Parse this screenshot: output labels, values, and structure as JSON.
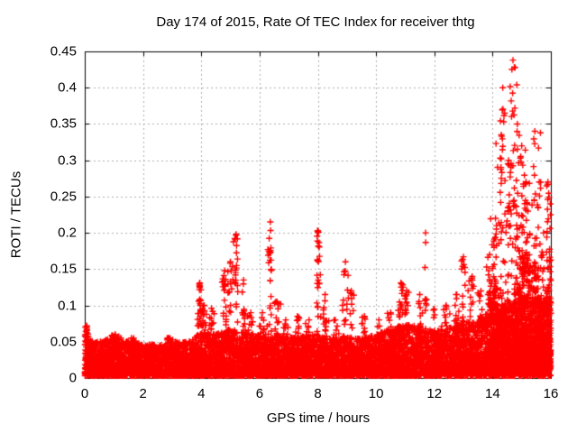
{
  "chart_data": {
    "type": "scatter",
    "title": "Day 174 of 2015, Rate Of TEC Index for receiver thtg",
    "xlabel": "GPS time / hours",
    "ylabel": "ROTI / TECUs",
    "xlim": [
      0,
      16
    ],
    "ylim": [
      0,
      0.45
    ],
    "xticks": [
      {
        "v": 0,
        "label": "0"
      },
      {
        "v": 2,
        "label": "2"
      },
      {
        "v": 4,
        "label": "4"
      },
      {
        "v": 6,
        "label": "6"
      },
      {
        "v": 8,
        "label": "8"
      },
      {
        "v": 10,
        "label": "10"
      },
      {
        "v": 12,
        "label": "12"
      },
      {
        "v": 14,
        "label": "14"
      },
      {
        "v": 16,
        "label": "16"
      }
    ],
    "yticks": [
      {
        "v": 0,
        "label": "0"
      },
      {
        "v": 0.05,
        "label": "0.05"
      },
      {
        "v": 0.1,
        "label": "0.1"
      },
      {
        "v": 0.15,
        "label": "0.15"
      },
      {
        "v": 0.2,
        "label": "0.2"
      },
      {
        "v": 0.25,
        "label": "0.25"
      },
      {
        "v": 0.3,
        "label": "0.3"
      },
      {
        "v": 0.35,
        "label": "0.35"
      },
      {
        "v": 0.4,
        "label": "0.4"
      },
      {
        "v": 0.45,
        "label": "0.45"
      }
    ],
    "grid": true,
    "legend": "none",
    "marker": "plus",
    "marker_size": 7,
    "marker_color": "#ff0000",
    "grid_color": "#b0b0b0",
    "axis_color": "#000000",
    "background": "#ffffff",
    "seed": 174,
    "baseline_band": {
      "count": 8200,
      "floor": 0.003,
      "shape_exponent": 1.7,
      "envelope": [
        [
          0,
          0.058
        ],
        [
          0.5,
          0.05
        ],
        [
          1,
          0.058
        ],
        [
          1.5,
          0.052
        ],
        [
          2,
          0.046
        ],
        [
          2.5,
          0.046
        ],
        [
          3,
          0.05
        ],
        [
          3.5,
          0.05
        ],
        [
          4,
          0.065
        ],
        [
          4.5,
          0.06
        ],
        [
          5,
          0.068
        ],
        [
          5.5,
          0.062
        ],
        [
          6,
          0.06
        ],
        [
          6.5,
          0.062
        ],
        [
          7,
          0.055
        ],
        [
          7.5,
          0.058
        ],
        [
          8,
          0.062
        ],
        [
          8.5,
          0.055
        ],
        [
          9,
          0.058
        ],
        [
          9.5,
          0.055
        ],
        [
          10,
          0.06
        ],
        [
          10.5,
          0.068
        ],
        [
          11,
          0.075
        ],
        [
          11.5,
          0.07
        ],
        [
          12,
          0.065
        ],
        [
          12.5,
          0.07
        ],
        [
          13,
          0.075
        ],
        [
          13.5,
          0.08
        ],
        [
          14,
          0.095
        ],
        [
          14.5,
          0.105
        ],
        [
          15,
          0.115
        ],
        [
          15.5,
          0.105
        ],
        [
          16,
          0.11
        ]
      ]
    },
    "storm_band": {
      "t0": 13.9,
      "t1": 16,
      "count": 950,
      "floor": 0.01,
      "shape_exponent": 1.5,
      "ymax_envelope": [
        [
          13.9,
          0.13
        ],
        [
          14.35,
          0.12
        ],
        [
          14.6,
          0.08
        ],
        [
          14.9,
          0.17
        ],
        [
          15.35,
          0.17
        ],
        [
          15.55,
          0.15
        ],
        [
          15.7,
          0.09
        ],
        [
          15.9,
          0.12
        ],
        [
          16,
          0.15
        ]
      ]
    },
    "spike_fields": [
      "t_hours",
      "sigma_hours",
      "peak_roti",
      "count"
    ],
    "spikes": [
      [
        0.07,
        0.04,
        0.072,
        20
      ],
      [
        1.05,
        0.08,
        0.06,
        12
      ],
      [
        1.6,
        0.06,
        0.055,
        8
      ],
      [
        2.9,
        0.08,
        0.055,
        8
      ],
      [
        3.95,
        0.04,
        0.131,
        30
      ],
      [
        4.1,
        0.05,
        0.1,
        14
      ],
      [
        4.35,
        0.04,
        0.096,
        12
      ],
      [
        4.8,
        0.05,
        0.148,
        22
      ],
      [
        5.0,
        0.05,
        0.16,
        18
      ],
      [
        5.2,
        0.04,
        0.198,
        22
      ],
      [
        5.45,
        0.06,
        0.135,
        15
      ],
      [
        5.7,
        0.05,
        0.09,
        10
      ],
      [
        6.1,
        0.05,
        0.09,
        10
      ],
      [
        6.37,
        0.04,
        0.215,
        26
      ],
      [
        6.6,
        0.06,
        0.105,
        12
      ],
      [
        6.9,
        0.06,
        0.08,
        10
      ],
      [
        7.3,
        0.06,
        0.085,
        10
      ],
      [
        7.7,
        0.05,
        0.08,
        8
      ],
      [
        8.0,
        0.04,
        0.203,
        28
      ],
      [
        8.25,
        0.05,
        0.115,
        12
      ],
      [
        8.6,
        0.05,
        0.08,
        8
      ],
      [
        8.95,
        0.05,
        0.16,
        18
      ],
      [
        9.15,
        0.05,
        0.12,
        10
      ],
      [
        9.6,
        0.06,
        0.085,
        10
      ],
      [
        10.1,
        0.07,
        0.08,
        10
      ],
      [
        10.5,
        0.07,
        0.09,
        12
      ],
      [
        10.85,
        0.06,
        0.131,
        22
      ],
      [
        11.05,
        0.05,
        0.12,
        15
      ],
      [
        11.5,
        0.05,
        0.115,
        14
      ],
      [
        11.7,
        0.03,
        0.2,
        10
      ],
      [
        12.0,
        0.06,
        0.095,
        12
      ],
      [
        12.4,
        0.06,
        0.1,
        12
      ],
      [
        12.75,
        0.06,
        0.115,
        16
      ],
      [
        13.0,
        0.05,
        0.167,
        20
      ],
      [
        13.3,
        0.07,
        0.14,
        18
      ],
      [
        13.6,
        0.06,
        0.12,
        16
      ],
      [
        13.9,
        0.06,
        0.17,
        20
      ],
      [
        14.1,
        0.07,
        0.22,
        30
      ],
      [
        14.3,
        0.05,
        0.335,
        18
      ],
      [
        14.35,
        0.05,
        0.4,
        28
      ],
      [
        14.55,
        0.06,
        0.3,
        30
      ],
      [
        14.7,
        0.05,
        0.438,
        22
      ],
      [
        14.85,
        0.05,
        0.35,
        25
      ],
      [
        15.0,
        0.06,
        0.32,
        30
      ],
      [
        15.15,
        0.06,
        0.27,
        25
      ],
      [
        15.45,
        0.06,
        0.34,
        25
      ],
      [
        15.6,
        0.05,
        0.27,
        20
      ],
      [
        15.75,
        0.04,
        0.2,
        15
      ],
      [
        15.9,
        0.04,
        0.27,
        20
      ],
      [
        15.98,
        0.02,
        0.24,
        15
      ]
    ]
  }
}
